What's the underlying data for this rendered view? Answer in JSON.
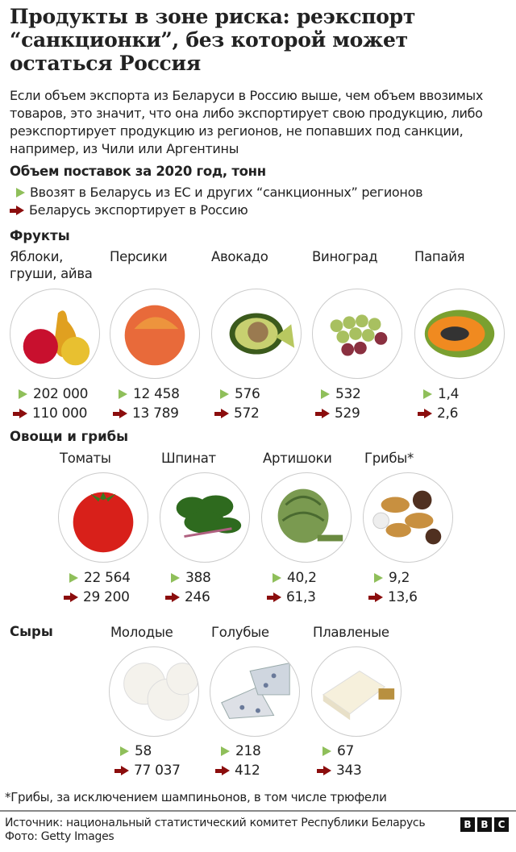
{
  "header": {
    "title": "Продукты в зоне риска: реэкспорт “санкционки”, без которой может остаться Россия",
    "subtitle": "Если объем экспорта из Беларуси в Россию выше, чем объем ввозимых товаров, это значит, что она либо экспортирует свою продукцию, либо реэкспортирует продукцию из регионов, не попавших под санкции, например, из Чили или Аргентины"
  },
  "legend": {
    "title": "Объем поставок за 2020 год, тонн",
    "import_label": "Ввозят в Беларусь из ЕС и других “санкционных” регионов",
    "export_label": "Беларусь экспортирует в Россию",
    "import_color": "#8fbf5a",
    "export_color": "#8b0d0d"
  },
  "sections": [
    {
      "title": "Фрукты",
      "items": [
        {
          "name": "Яблоки, груши, айва",
          "import": "202 000",
          "export": "110 000",
          "icon": "apple-pear-quince-photo"
        },
        {
          "name": "Персики",
          "import": "12 458",
          "export": "13 789",
          "icon": "peach-photo"
        },
        {
          "name": "Авокадо",
          "import": "576",
          "export": "572",
          "icon": "avocado-photo"
        },
        {
          "name": "Виноград",
          "import": "532",
          "export": "529",
          "icon": "grapes-photo"
        },
        {
          "name": "Папайя",
          "import": "1,4",
          "export": "2,6",
          "icon": "papaya-photo"
        }
      ]
    },
    {
      "title": "Овощи и грибы",
      "items": [
        {
          "name": "Томаты",
          "import": "22 564",
          "export": "29 200",
          "icon": "tomato-photo"
        },
        {
          "name": "Шпинат",
          "import": "388",
          "export": "246",
          "icon": "spinach-photo"
        },
        {
          "name": "Артишоки",
          "import": "40,2",
          "export": "61,3",
          "icon": "artichoke-photo"
        },
        {
          "name": "Грибы*",
          "import": "9,2",
          "export": "13,6",
          "icon": "mushrooms-photo"
        }
      ]
    },
    {
      "title": "Сыры",
      "items": [
        {
          "name": "Молодые",
          "import": "58",
          "export": "77 037",
          "icon": "young-cheese-photo"
        },
        {
          "name": "Голубые",
          "import": "218",
          "export": "412",
          "icon": "blue-cheese-photo"
        },
        {
          "name": "Плавленые",
          "import": "67",
          "export": "343",
          "icon": "processed-cheese-photo"
        }
      ]
    }
  ],
  "footer": {
    "footnote": "*Грибы, за исключением шампиньонов, в том числе трюфели",
    "source": "Источник: национальный статистический комитет Республики Беларусь",
    "photo": "Фото: Getty Images",
    "logo": [
      "B",
      "B",
      "C"
    ]
  }
}
